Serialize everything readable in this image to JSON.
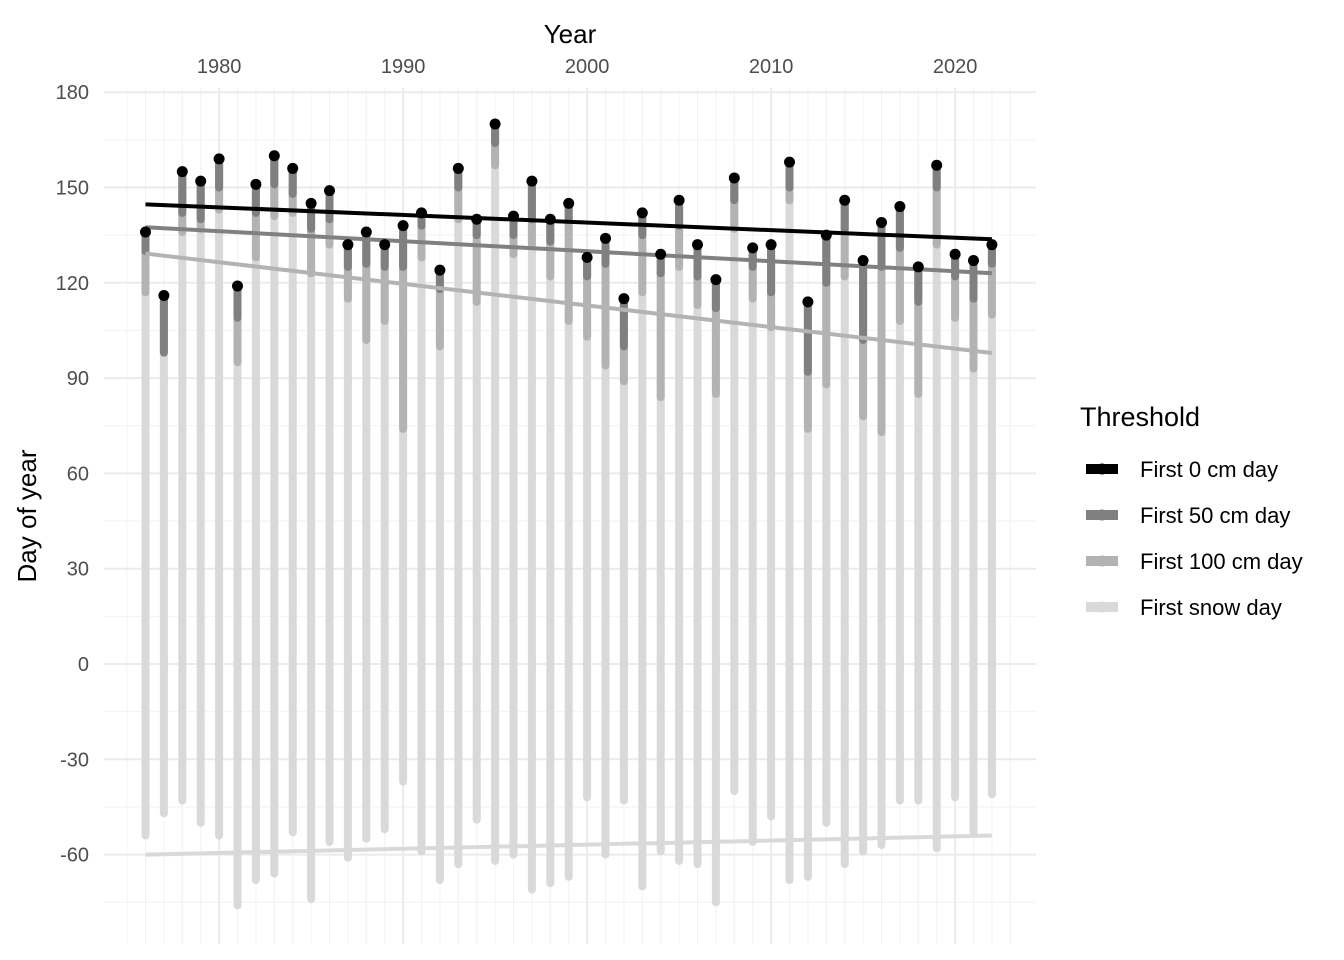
{
  "chart_data": {
    "type": "line",
    "xlabel": "Year",
    "ylabel": "Day of year",
    "xlim": [
      1975,
      2023
    ],
    "ylim": [
      -80,
      180
    ],
    "x_ticks": [
      1980,
      1990,
      2000,
      2010,
      2020
    ],
    "y_ticks": [
      180,
      150,
      120,
      90,
      60,
      30,
      0,
      -30,
      -60
    ],
    "x_axis_position": "top",
    "grid": true,
    "legend": {
      "title": "Threshold",
      "position": "right",
      "entries": [
        {
          "label": "First 0 cm day",
          "color": "#000000"
        },
        {
          "label": "First 50 cm day",
          "color": "#808080"
        },
        {
          "label": "First 100 cm day",
          "color": "#b3b3b3"
        },
        {
          "label": "First snow day",
          "color": "#d9d9d9"
        }
      ]
    },
    "years": [
      1976,
      1977,
      1978,
      1979,
      1980,
      1981,
      1982,
      1983,
      1984,
      1985,
      1986,
      1987,
      1988,
      1989,
      1990,
      1991,
      1992,
      1993,
      1994,
      1995,
      1996,
      1997,
      1998,
      1999,
      2000,
      2001,
      2002,
      2003,
      2004,
      2005,
      2006,
      2007,
      2008,
      2009,
      2010,
      2011,
      2012,
      2013,
      2014,
      2015,
      2016,
      2017,
      2018,
      2019,
      2020,
      2021,
      2022
    ],
    "series": [
      {
        "name": "First 0 cm day",
        "color": "#000000",
        "values": [
          136,
          116,
          155,
          152,
          159,
          119,
          151,
          160,
          156,
          145,
          149,
          132,
          136,
          132,
          138,
          142,
          124,
          156,
          140,
          170,
          141,
          152,
          140,
          145,
          128,
          134,
          115,
          142,
          129,
          146,
          132,
          121,
          153,
          131,
          132,
          158,
          114,
          135,
          146,
          127,
          139,
          144,
          125,
          157,
          129,
          127,
          132
        ]
      },
      {
        "name": "First 50 cm day",
        "color": "#808080",
        "values": [
          130,
          98,
          142,
          140,
          150,
          109,
          142,
          151,
          148,
          137,
          140,
          125,
          126,
          125,
          125,
          138,
          118,
          150,
          135,
          164,
          135,
          140,
          133,
          140,
          122,
          126,
          100,
          135,
          123,
          138,
          122,
          112,
          146,
          125,
          117,
          150,
          92,
          120,
          137,
          102,
          125,
          131,
          114,
          150,
          122,
          115,
          126
        ]
      },
      {
        "name": "First 100 cm day",
        "color": "#b3b3b3",
        "values": [
          117,
          98,
          136,
          137,
          143,
          95,
          128,
          141,
          142,
          123,
          132,
          115,
          102,
          108,
          74,
          128,
          100,
          140,
          114,
          157,
          129,
          132,
          122,
          108,
          103,
          94,
          89,
          117,
          84,
          125,
          113,
          85,
          137,
          115,
          106,
          146,
          74,
          88,
          122,
          78,
          73,
          108,
          85,
          132,
          109,
          93,
          110
        ]
      },
      {
        "name": "First snow day",
        "color": "#d9d9d9",
        "values": [
          -54,
          -47,
          -43,
          -50,
          -54,
          -76,
          -68,
          -66,
          -53,
          -74,
          -56,
          -61,
          -55,
          -52,
          -37,
          -59,
          -68,
          -63,
          -49,
          -62,
          -60,
          -71,
          -69,
          -67,
          -42,
          -60,
          -43,
          -70,
          -59,
          -62,
          -63,
          -75,
          -40,
          -56,
          -48,
          -68,
          -67,
          -50,
          -63,
          -59,
          -57,
          -43,
          -43,
          -58,
          -42,
          -53,
          -41
        ]
      }
    ],
    "trend_lines": [
      {
        "name": "First 0 cm day",
        "color": "#000000",
        "x": [
          1976,
          2022
        ],
        "y": [
          144.7,
          133.7
        ]
      },
      {
        "name": "First 50 cm day",
        "color": "#808080",
        "x": [
          1976,
          2022
        ],
        "y": [
          137.5,
          123.0
        ]
      },
      {
        "name": "First 100 cm day",
        "color": "#b3b3b3",
        "x": [
          1976,
          2022
        ],
        "y": [
          129.2,
          97.9
        ]
      },
      {
        "name": "First snow day",
        "color": "#d9d9d9",
        "x": [
          1976,
          2022
        ],
        "y": [
          -60.0,
          -54.0
        ]
      }
    ]
  }
}
